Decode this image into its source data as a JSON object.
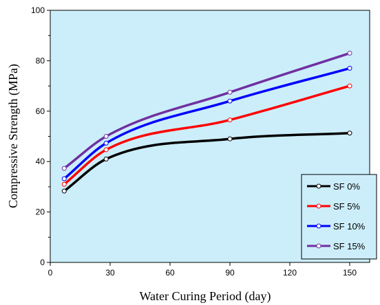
{
  "chart_data": {
    "type": "line",
    "title": "",
    "xlabel": "Water Curing Period (day)",
    "ylabel": "Compressive Strength (MPa)",
    "xlim": [
      0,
      160
    ],
    "ylim": [
      0,
      100
    ],
    "xticks": [
      0,
      30,
      60,
      90,
      120,
      150
    ],
    "yticks": [
      0,
      20,
      40,
      60,
      80,
      100
    ],
    "x": [
      7,
      28,
      90,
      150
    ],
    "series": [
      {
        "name": "SF 0%",
        "values": [
          28.3,
          41.0,
          49.0,
          51.3
        ],
        "color": "#000000"
      },
      {
        "name": "SF 5%",
        "values": [
          31.0,
          44.7,
          56.5,
          70.0
        ],
        "color": "#ff0000"
      },
      {
        "name": "SF 10%",
        "values": [
          33.2,
          47.3,
          64.0,
          77.0
        ],
        "color": "#0000ff"
      },
      {
        "name": "SF 15%",
        "values": [
          37.3,
          50.0,
          67.5,
          83.0
        ],
        "color": "#7030a0"
      }
    ],
    "grid": false,
    "legend": "bottom-right",
    "plot_background": "#cceefa"
  }
}
